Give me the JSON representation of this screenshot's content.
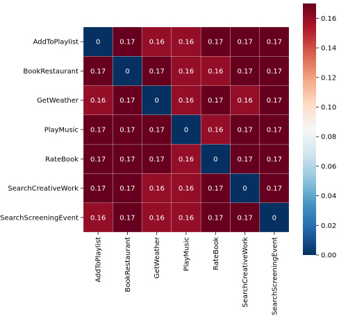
{
  "chart_data": {
    "type": "heatmap",
    "rows": [
      "AddToPlaylist",
      "BookRestaurant",
      "GetWeather",
      "PlayMusic",
      "RateBook",
      "SearchCreativeWork",
      "SearchScreeningEvent"
    ],
    "columns": [
      "AddToPlaylist",
      "BookRestaurant",
      "GetWeather",
      "PlayMusic",
      "RateBook",
      "SearchCreativeWork",
      "SearchScreeningEvent"
    ],
    "values": [
      [
        0,
        0.17,
        0.16,
        0.16,
        0.17,
        0.17,
        0.17
      ],
      [
        0.17,
        0,
        0.17,
        0.16,
        0.16,
        0.17,
        0.17
      ],
      [
        0.16,
        0.17,
        0,
        0.16,
        0.17,
        0.16,
        0.17
      ],
      [
        0.17,
        0.17,
        0.17,
        0,
        0.16,
        0.17,
        0.17
      ],
      [
        0.17,
        0.17,
        0.17,
        0.16,
        0,
        0.17,
        0.17
      ],
      [
        0.17,
        0.17,
        0.16,
        0.16,
        0.17,
        0,
        0.17
      ],
      [
        0.16,
        0.17,
        0.16,
        0.16,
        0.17,
        0.17,
        0
      ]
    ],
    "colorbar": {
      "colormap": "RdBu_r",
      "vmin": 0,
      "vmax": 0.17,
      "ticks": [
        0.0,
        0.02,
        0.04,
        0.06,
        0.08,
        0.1,
        0.12,
        0.14,
        0.16
      ],
      "tick_labels": [
        "0.00",
        "0.02",
        "0.04",
        "0.06",
        "0.08",
        "0.10",
        "0.12",
        "0.14",
        "0.16"
      ]
    },
    "title": "",
    "xlabel": "",
    "ylabel": "",
    "x_tick_rotation": "vertical",
    "colors": {
      "high": "#67001f",
      "low": "#053061",
      "mid": "#f7f7f7",
      "cell_text": "#ffffff"
    }
  }
}
